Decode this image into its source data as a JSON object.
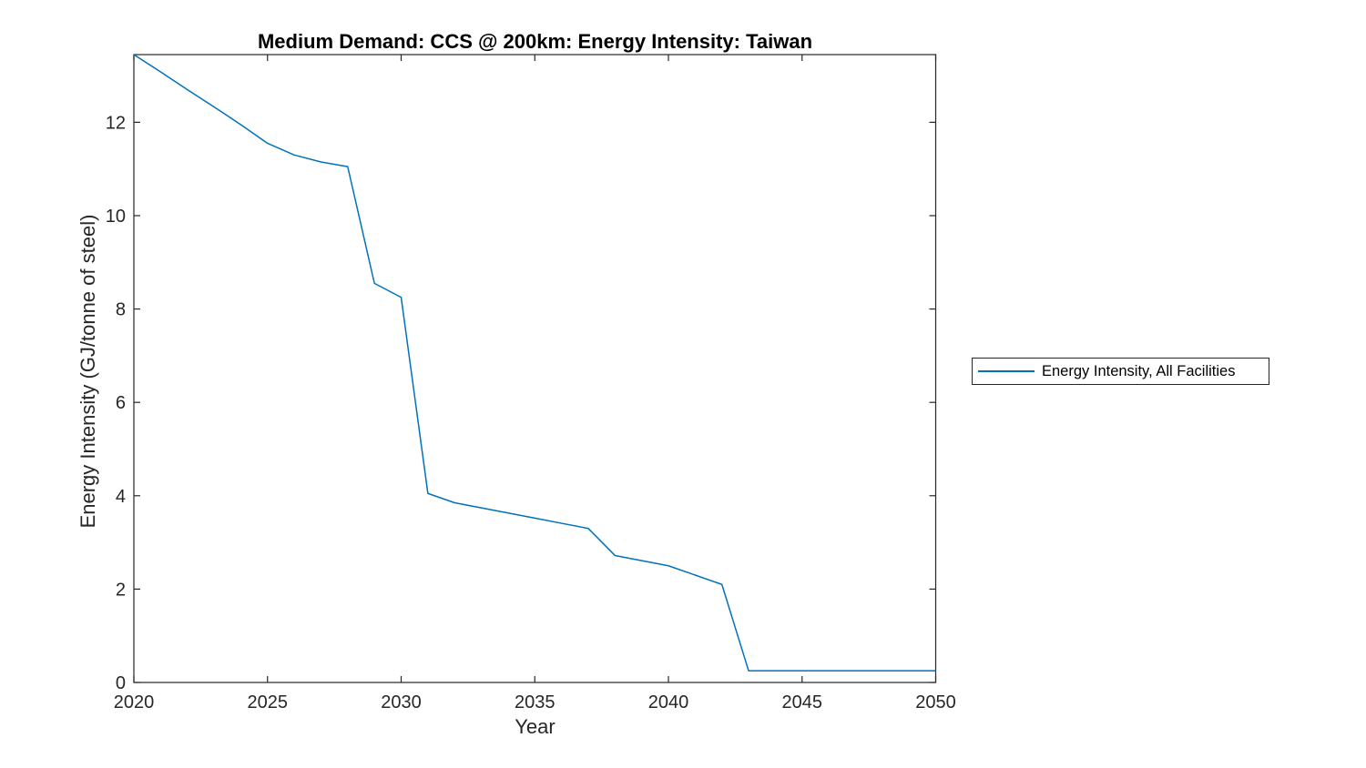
{
  "chart_data": {
    "type": "line",
    "title": "Medium Demand: CCS @ 200km: Energy Intensity: Taiwan",
    "xlabel": "Year",
    "ylabel": "Energy Intensity (GJ/tonne of steel)",
    "x": [
      2020,
      2021,
      2022,
      2023,
      2024,
      2025,
      2026,
      2027,
      2028,
      2029,
      2030,
      2031,
      2032,
      2033,
      2034,
      2035,
      2036,
      2037,
      2038,
      2039,
      2040,
      2041,
      2042,
      2043,
      2044,
      2045,
      2046,
      2047,
      2048,
      2049,
      2050
    ],
    "series": [
      {
        "name": "Energy Intensity, All Facilities",
        "color": "#0072BD",
        "values": [
          13.45,
          13.08,
          12.7,
          12.33,
          11.95,
          11.55,
          11.3,
          11.15,
          11.05,
          8.55,
          8.25,
          4.05,
          3.85,
          3.74,
          3.63,
          3.52,
          3.41,
          3.3,
          2.72,
          2.61,
          2.5,
          2.3,
          2.1,
          0.25,
          0.25,
          0.25,
          0.25,
          0.25,
          0.25,
          0.25,
          0.25
        ]
      }
    ],
    "xlim": [
      2020,
      2050
    ],
    "ylim": [
      0,
      13.45
    ],
    "xticks": [
      2020,
      2025,
      2030,
      2035,
      2040,
      2045,
      2050
    ],
    "yticks": [
      0,
      2,
      4,
      6,
      8,
      10,
      12
    ],
    "grid": false,
    "legend_position": "right-outside",
    "axis_color": "#262626",
    "tick_label_color": "#262626"
  },
  "legend": {
    "entries": [
      {
        "label": "Energy Intensity, All Facilities",
        "color": "#0072BD"
      }
    ]
  }
}
